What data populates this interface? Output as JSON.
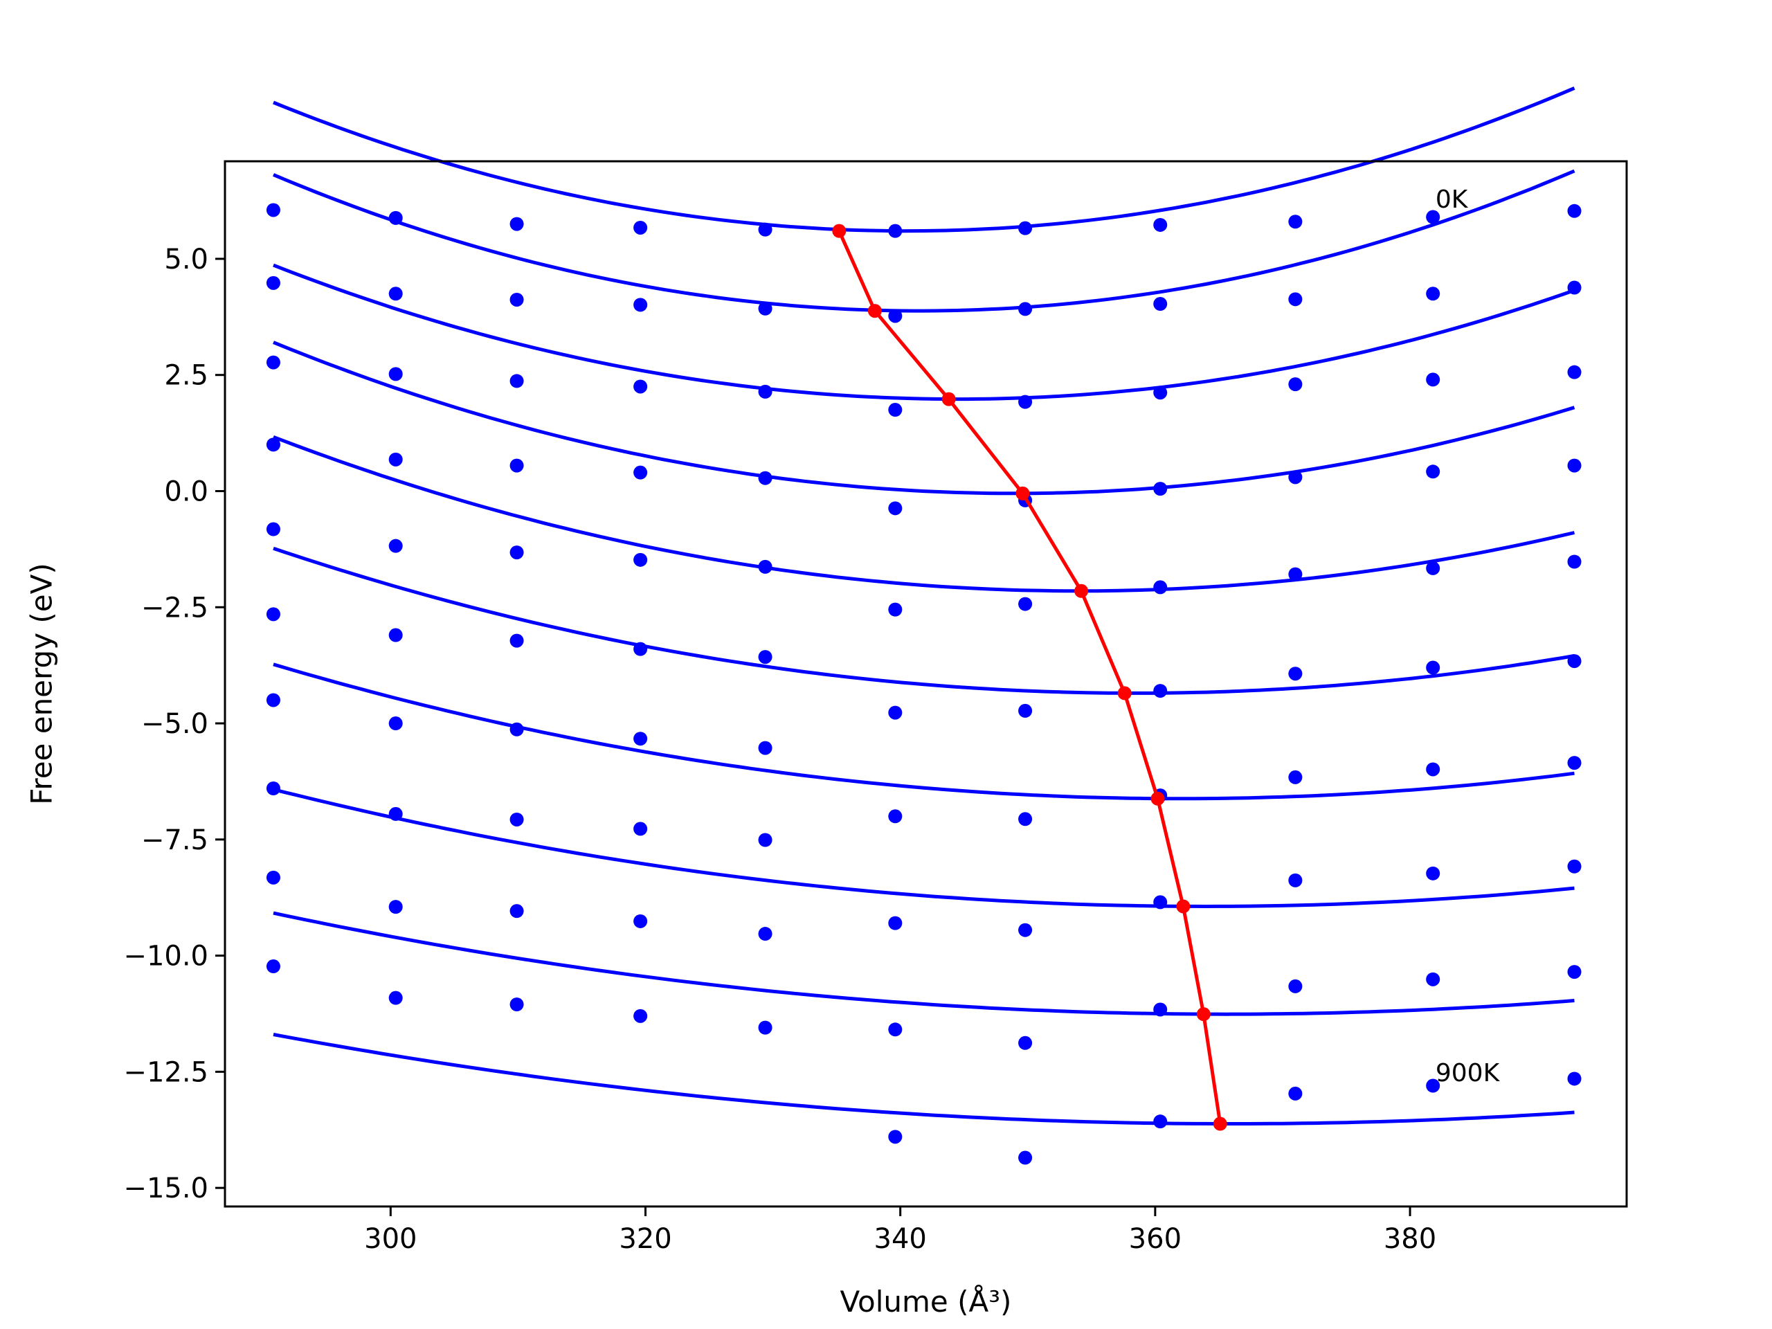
{
  "chart_data": {
    "type": "scatter",
    "xlabel": "Volume (Å³)",
    "ylabel": "Free energy (eV)",
    "xlim": [
      287,
      397
    ],
    "ylim": [
      -15.4,
      7.1
    ],
    "x_ticks": [
      300,
      320,
      340,
      360,
      380
    ],
    "y_ticks": [
      5.0,
      2.5,
      0.0,
      -2.5,
      -5.0,
      -7.5,
      -10.0,
      -12.5,
      -15.0
    ],
    "x_tick_labels": [
      "300",
      "320",
      "340",
      "360",
      "380"
    ],
    "y_tick_labels": [
      "5.0",
      "2.5",
      "0.0",
      "−2.5",
      "−5.0",
      "−7.5",
      "−10.0",
      "−12.5",
      "−15.0"
    ],
    "grid": false,
    "legend": "none",
    "colors": {
      "points": "#0000ff",
      "fit": "#0000ff",
      "minimum": "#ff0000"
    },
    "annotations": [
      {
        "text": "0K",
        "x": 382.0,
        "y": 6.1
      },
      {
        "text": "900K",
        "x": 382.0,
        "y": -12.7
      }
    ],
    "x": [
      290.8,
      300.4,
      309.9,
      319.6,
      329.4,
      339.6,
      349.8,
      360.4,
      371.0,
      381.8,
      392.9
    ],
    "series": [
      {
        "values": [
          6.05,
          5.88,
          5.75,
          5.67,
          5.63,
          5.6,
          5.66,
          5.73,
          5.8,
          5.9,
          6.03
        ],
        "fit": {
          "a": 0.00112,
          "v0": 340.5,
          "f0": 5.6
        }
      },
      {
        "values": [
          4.48,
          4.25,
          4.12,
          4.01,
          3.93,
          3.77,
          3.92,
          4.03,
          4.13,
          4.25,
          4.38
        ],
        "fit": {
          "a": 0.00114,
          "v0": 341.5,
          "f0": 3.88
        }
      },
      {
        "values": [
          2.77,
          2.52,
          2.37,
          2.25,
          2.14,
          1.75,
          1.92,
          2.12,
          2.3,
          2.4,
          2.56
        ],
        "fit": {
          "a": 0.001,
          "v0": 344.5,
          "f0": 1.98
        }
      },
      {
        "values": [
          1.0,
          0.68,
          0.55,
          0.4,
          0.28,
          -0.37,
          -0.2,
          0.05,
          0.3,
          0.42,
          0.55
        ],
        "fit": {
          "a": 0.00096,
          "v0": 349.0,
          "f0": -0.05
        }
      },
      {
        "values": [
          -0.82,
          -1.18,
          -1.32,
          -1.48,
          -1.63,
          -2.55,
          -2.43,
          -2.07,
          -1.79,
          -1.66,
          -1.52
        ],
        "fit": {
          "a": 0.00083,
          "v0": 354.0,
          "f0": -2.15
        }
      },
      {
        "values": [
          -2.65,
          -3.1,
          -3.22,
          -3.4,
          -3.57,
          -4.77,
          -4.73,
          -4.3,
          -3.93,
          -3.8,
          -3.66
        ],
        "fit": {
          "a": 0.00068,
          "v0": 358.5,
          "f0": -4.35
        }
      },
      {
        "values": [
          -4.5,
          -5.0,
          -5.13,
          -5.33,
          -5.53,
          -7.0,
          -7.06,
          -6.55,
          -6.16,
          -5.99,
          -5.85
        ],
        "fit": {
          "a": 0.00057,
          "v0": 362.0,
          "f0": -6.62
        }
      },
      {
        "values": [
          -6.4,
          -6.95,
          -7.07,
          -7.27,
          -7.51,
          -9.3,
          -9.45,
          -8.85,
          -8.38,
          -8.23,
          -8.08
        ],
        "fit": {
          "a": 0.00047,
          "v0": 364.0,
          "f0": -8.94
        }
      },
      {
        "values": [
          -8.32,
          -8.95,
          -9.04,
          -9.26,
          -9.53,
          -11.59,
          -11.88,
          -11.16,
          -10.66,
          -10.51,
          -10.35
        ],
        "fit": {
          "a": 0.00039,
          "v0": 365.5,
          "f0": -11.26
        }
      },
      {
        "values": [
          -10.23,
          -10.91,
          -11.05,
          -11.3,
          -11.55,
          -13.9,
          -14.35,
          -13.57,
          -12.97,
          -12.8,
          -12.65
        ],
        "fit": {
          "a": 0.00034,
          "v0": 366.0,
          "f0": -13.62
        }
      }
    ],
    "minimum_path": {
      "x": [
        335.2,
        338.0,
        343.8,
        349.6,
        354.2,
        357.6,
        360.2,
        362.2,
        363.8,
        365.1
      ],
      "y": [
        5.6,
        3.88,
        1.98,
        -0.05,
        -2.15,
        -4.35,
        -6.62,
        -8.94,
        -11.26,
        -13.62
      ]
    }
  }
}
